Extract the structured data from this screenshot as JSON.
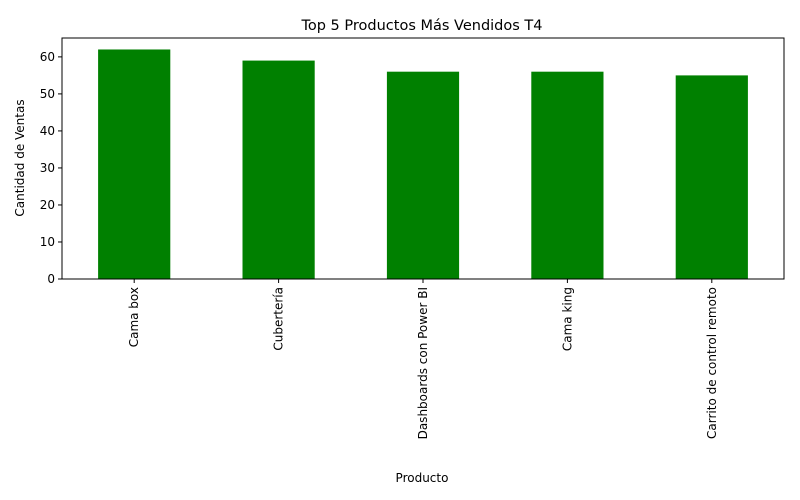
{
  "chart_data": {
    "type": "bar",
    "title": "Top 5 Productos Más Vendidos T4",
    "xlabel": "Producto",
    "ylabel": "Cantidad de Ventas",
    "categories": [
      "Cama box",
      "Cubertería",
      "Dashboards con Power BI",
      "Cama king",
      "Carrito de control remoto"
    ],
    "values": [
      62,
      59,
      56,
      56,
      55
    ],
    "ylim": [
      0,
      65.1
    ],
    "yticks": [
      0,
      10,
      20,
      30,
      40,
      50,
      60
    ],
    "grid": false,
    "legend": "none",
    "bar_color": "#008000"
  }
}
